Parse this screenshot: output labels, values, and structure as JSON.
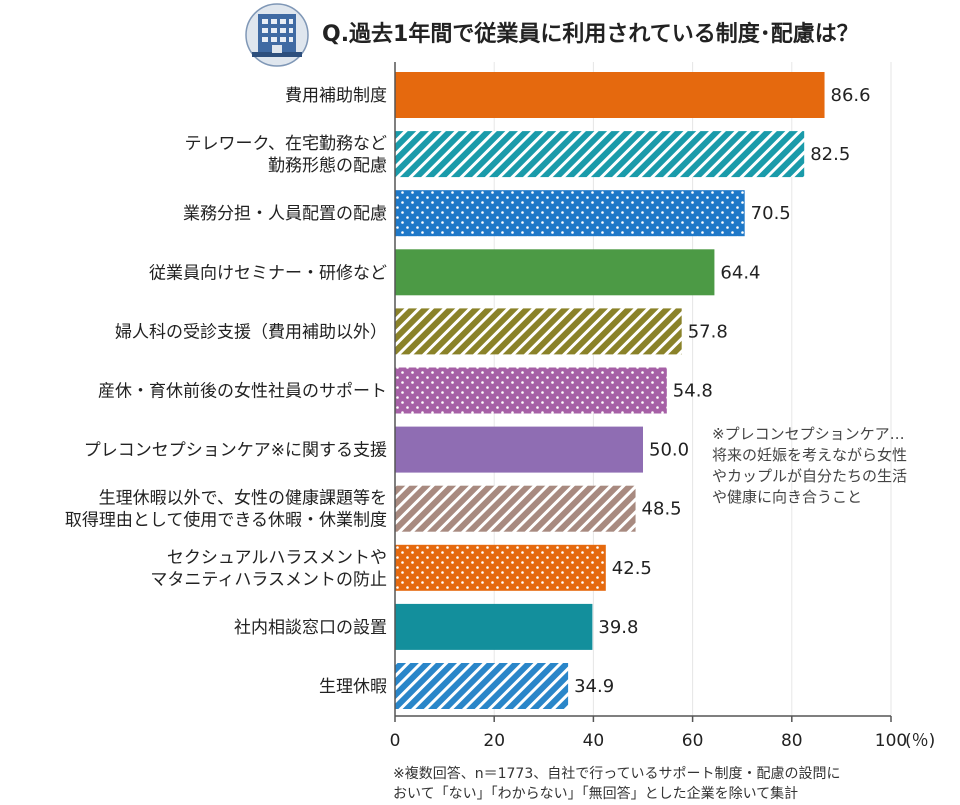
{
  "chart_data": {
    "type": "bar",
    "orientation": "horizontal",
    "title": "Q.過去1年間で従業員に利用されている制度･配慮は？",
    "categories": [
      [
        "費用補助制度"
      ],
      [
        "テレワーク、在宅勤務など",
        "勤務形態の配慮"
      ],
      [
        "業務分担・人員配置の配慮"
      ],
      [
        "従業員向けセミナー・研修など"
      ],
      [
        "婦人科の受診支援（費用補助以外）"
      ],
      [
        "産休・育休前後の女性社員のサポート"
      ],
      [
        "プレコンセプションケア※に関する支援"
      ],
      [
        "生理休暇以外で、女性の健康課題等を",
        "取得理由として使用できる休暇・休業制度"
      ],
      [
        "セクシュアルハラスメントや",
        "マタニティハラスメントの防止"
      ],
      [
        "社内相談窓口の設置"
      ],
      [
        "生理休暇"
      ]
    ],
    "values": [
      86.6,
      82.5,
      70.5,
      64.4,
      57.8,
      54.8,
      50.0,
      48.5,
      42.5,
      39.8,
      34.9
    ],
    "value_labels": [
      "86.6",
      "82.5",
      "70.5",
      "64.4",
      "57.8",
      "54.8",
      "50.0",
      "48.5",
      "42.5",
      "39.8",
      "34.9"
    ],
    "bar_colors": [
      "#e5690e",
      "#1a9baa",
      "#1e78c8",
      "#4c9a45",
      "#8a8229",
      "#a660a6",
      "#8f6db3",
      "#a88a80",
      "#e5690e",
      "#138f9c",
      "#2a86c9"
    ],
    "bar_patterns": [
      "solid",
      "hatch",
      "dots",
      "solid",
      "hatch",
      "dots",
      "solid",
      "hatch",
      "dots",
      "solid",
      "hatch"
    ],
    "xlim": [
      0,
      100
    ],
    "xticks": [
      0,
      20,
      40,
      60,
      80,
      100
    ],
    "xtick_labels": [
      "0",
      "20",
      "40",
      "60",
      "80",
      "100"
    ],
    "xunit": "(％)",
    "note": [
      "※プレコンセプションケア…",
      "将来の妊娠を考えながら女性",
      "やカップルが自分たちの生活",
      "や健康に向き合うこと"
    ],
    "footnote": [
      "※複数回答、n＝1773、自社で行っているサポート制度・配慮の設問に",
      "おいて「ない」「わからない」「無回答」とした企業を除いて集計"
    ]
  },
  "icon": "office-building-icon"
}
